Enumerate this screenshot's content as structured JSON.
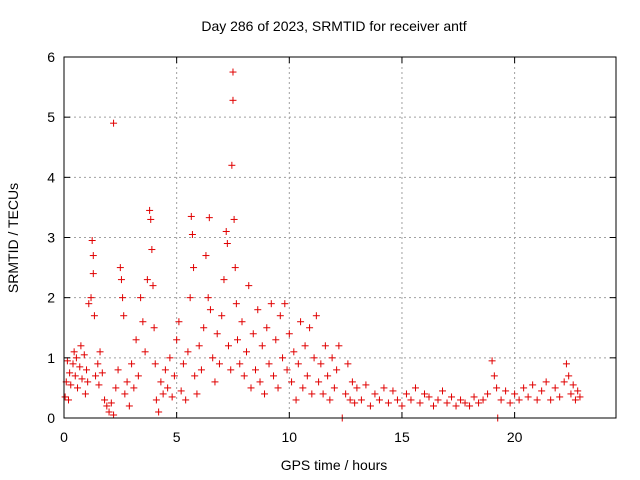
{
  "chart_data": {
    "type": "scatter",
    "title": "Day 286 of 2023, SRMTID for receiver antf",
    "xlabel": "GPS time / hours",
    "ylabel": "SRMTID / TECUs",
    "xlim": [
      0,
      24.5
    ],
    "ylim": [
      0,
      6
    ],
    "xticks": [
      0,
      5,
      10,
      15,
      20
    ],
    "yticks": [
      0,
      1,
      2,
      3,
      4,
      5,
      6
    ],
    "grid": true,
    "marker": "+",
    "series": [
      {
        "name": "antf",
        "color": "#e00000",
        "points": [
          [
            0.05,
            0.35
          ],
          [
            0.1,
            0.6
          ],
          [
            0.15,
            0.95
          ],
          [
            0.2,
            0.3
          ],
          [
            0.25,
            0.75
          ],
          [
            0.3,
            0.55
          ],
          [
            0.4,
            0.9
          ],
          [
            0.45,
            1.1
          ],
          [
            0.5,
            0.7
          ],
          [
            0.55,
            1.0
          ],
          [
            0.6,
            0.5
          ],
          [
            0.7,
            0.85
          ],
          [
            0.75,
            1.2
          ],
          [
            0.8,
            0.65
          ],
          [
            0.9,
            1.05
          ],
          [
            0.95,
            0.4
          ],
          [
            1.0,
            0.8
          ],
          [
            1.05,
            0.6
          ],
          [
            1.1,
            1.9
          ],
          [
            1.2,
            2.0
          ],
          [
            1.25,
            2.95
          ],
          [
            1.3,
            2.7
          ],
          [
            1.3,
            2.4
          ],
          [
            1.35,
            1.7
          ],
          [
            1.4,
            0.7
          ],
          [
            1.5,
            0.9
          ],
          [
            1.55,
            0.55
          ],
          [
            1.6,
            1.1
          ],
          [
            1.7,
            0.75
          ],
          [
            1.8,
            0.3
          ],
          [
            1.9,
            0.2
          ],
          [
            2.0,
            0.1
          ],
          [
            2.1,
            0.25
          ],
          [
            2.2,
            0.05
          ],
          [
            2.2,
            4.9
          ],
          [
            2.3,
            0.5
          ],
          [
            2.4,
            0.8
          ],
          [
            2.5,
            2.5
          ],
          [
            2.55,
            2.3
          ],
          [
            2.6,
            2.0
          ],
          [
            2.65,
            1.7
          ],
          [
            2.7,
            0.4
          ],
          [
            2.8,
            0.6
          ],
          [
            2.9,
            0.2
          ],
          [
            3.0,
            0.9
          ],
          [
            3.1,
            0.5
          ],
          [
            3.2,
            1.3
          ],
          [
            3.3,
            0.7
          ],
          [
            3.4,
            2.0
          ],
          [
            3.5,
            1.6
          ],
          [
            3.6,
            1.1
          ],
          [
            3.7,
            2.3
          ],
          [
            3.8,
            3.45
          ],
          [
            3.85,
            3.3
          ],
          [
            3.9,
            2.8
          ],
          [
            3.95,
            2.2
          ],
          [
            4.0,
            1.5
          ],
          [
            4.05,
            0.9
          ],
          [
            4.1,
            0.3
          ],
          [
            4.2,
            0.1
          ],
          [
            4.3,
            0.6
          ],
          [
            4.4,
            0.4
          ],
          [
            4.5,
            0.8
          ],
          [
            4.6,
            0.5
          ],
          [
            4.7,
            1.0
          ],
          [
            4.8,
            0.35
          ],
          [
            4.9,
            0.7
          ],
          [
            5.0,
            1.3
          ],
          [
            5.1,
            1.6
          ],
          [
            5.2,
            0.45
          ],
          [
            5.3,
            0.9
          ],
          [
            5.4,
            0.3
          ],
          [
            5.5,
            1.1
          ],
          [
            5.6,
            2.0
          ],
          [
            5.65,
            3.35
          ],
          [
            5.7,
            3.05
          ],
          [
            5.75,
            2.5
          ],
          [
            5.8,
            0.7
          ],
          [
            5.9,
            0.4
          ],
          [
            6.0,
            1.2
          ],
          [
            6.1,
            0.8
          ],
          [
            6.2,
            1.5
          ],
          [
            6.3,
            2.7
          ],
          [
            6.4,
            2.0
          ],
          [
            6.45,
            3.33
          ],
          [
            6.5,
            1.8
          ],
          [
            6.6,
            1.0
          ],
          [
            6.7,
            0.6
          ],
          [
            6.8,
            1.4
          ],
          [
            6.9,
            0.9
          ],
          [
            7.0,
            1.7
          ],
          [
            7.1,
            2.3
          ],
          [
            7.2,
            3.1
          ],
          [
            7.25,
            2.9
          ],
          [
            7.3,
            1.2
          ],
          [
            7.4,
            0.8
          ],
          [
            7.45,
            4.2
          ],
          [
            7.5,
            5.75
          ],
          [
            7.5,
            5.28
          ],
          [
            7.55,
            3.3
          ],
          [
            7.6,
            2.5
          ],
          [
            7.65,
            1.9
          ],
          [
            7.7,
            1.3
          ],
          [
            7.8,
            0.9
          ],
          [
            7.9,
            1.6
          ],
          [
            8.0,
            0.7
          ],
          [
            8.1,
            1.1
          ],
          [
            8.2,
            2.2
          ],
          [
            8.3,
            0.5
          ],
          [
            8.4,
            1.4
          ],
          [
            8.5,
            0.8
          ],
          [
            8.6,
            1.8
          ],
          [
            8.7,
            0.6
          ],
          [
            8.8,
            1.2
          ],
          [
            8.9,
            0.4
          ],
          [
            9.0,
            1.5
          ],
          [
            9.1,
            0.9
          ],
          [
            9.2,
            1.9
          ],
          [
            9.3,
            0.7
          ],
          [
            9.4,
            1.3
          ],
          [
            9.5,
            0.5
          ],
          [
            9.6,
            1.7
          ],
          [
            9.7,
            1.0
          ],
          [
            9.8,
            1.9
          ],
          [
            9.9,
            0.8
          ],
          [
            10.0,
            1.4
          ],
          [
            10.1,
            0.6
          ],
          [
            10.2,
            1.1
          ],
          [
            10.3,
            0.3
          ],
          [
            10.4,
            0.9
          ],
          [
            10.5,
            1.6
          ],
          [
            10.6,
            0.5
          ],
          [
            10.7,
            1.2
          ],
          [
            10.8,
            0.7
          ],
          [
            10.9,
            1.5
          ],
          [
            11.0,
            0.4
          ],
          [
            11.1,
            1.0
          ],
          [
            11.2,
            1.7
          ],
          [
            11.3,
            0.6
          ],
          [
            11.4,
            0.9
          ],
          [
            11.5,
            0.4
          ],
          [
            11.6,
            1.2
          ],
          [
            11.7,
            0.7
          ],
          [
            11.8,
            0.3
          ],
          [
            11.9,
            1.0
          ],
          [
            12.0,
            0.5
          ],
          [
            12.1,
            0.8
          ],
          [
            12.2,
            1.2
          ],
          [
            12.35,
            0.0
          ],
          [
            12.5,
            0.4
          ],
          [
            12.6,
            0.9
          ],
          [
            12.7,
            0.3
          ],
          [
            12.8,
            0.6
          ],
          [
            12.9,
            0.25
          ],
          [
            13.0,
            0.5
          ],
          [
            13.2,
            0.3
          ],
          [
            13.4,
            0.55
          ],
          [
            13.6,
            0.2
          ],
          [
            13.8,
            0.4
          ],
          [
            14.0,
            0.3
          ],
          [
            14.2,
            0.5
          ],
          [
            14.4,
            0.25
          ],
          [
            14.6,
            0.45
          ],
          [
            14.8,
            0.3
          ],
          [
            15.0,
            0.2
          ],
          [
            15.2,
            0.4
          ],
          [
            15.4,
            0.3
          ],
          [
            15.6,
            0.5
          ],
          [
            15.8,
            0.25
          ],
          [
            16.0,
            0.4
          ],
          [
            16.2,
            0.35
          ],
          [
            16.4,
            0.2
          ],
          [
            16.6,
            0.3
          ],
          [
            16.8,
            0.45
          ],
          [
            17.0,
            0.25
          ],
          [
            17.2,
            0.35
          ],
          [
            17.4,
            0.2
          ],
          [
            17.6,
            0.3
          ],
          [
            17.8,
            0.25
          ],
          [
            18.0,
            0.2
          ],
          [
            18.2,
            0.35
          ],
          [
            18.4,
            0.25
          ],
          [
            18.6,
            0.3
          ],
          [
            18.8,
            0.4
          ],
          [
            19.0,
            0.95
          ],
          [
            19.1,
            0.7
          ],
          [
            19.2,
            0.5
          ],
          [
            19.25,
            0.0
          ],
          [
            19.4,
            0.3
          ],
          [
            19.6,
            0.45
          ],
          [
            19.8,
            0.25
          ],
          [
            20.0,
            0.4
          ],
          [
            20.2,
            0.3
          ],
          [
            20.4,
            0.5
          ],
          [
            20.6,
            0.35
          ],
          [
            20.8,
            0.55
          ],
          [
            21.0,
            0.3
          ],
          [
            21.2,
            0.45
          ],
          [
            21.4,
            0.6
          ],
          [
            21.6,
            0.3
          ],
          [
            21.8,
            0.5
          ],
          [
            22.0,
            0.35
          ],
          [
            22.2,
            0.6
          ],
          [
            22.3,
            0.9
          ],
          [
            22.4,
            0.7
          ],
          [
            22.5,
            0.4
          ],
          [
            22.6,
            0.55
          ],
          [
            22.7,
            0.3
          ],
          [
            22.8,
            0.45
          ],
          [
            22.9,
            0.35
          ]
        ]
      }
    ]
  }
}
